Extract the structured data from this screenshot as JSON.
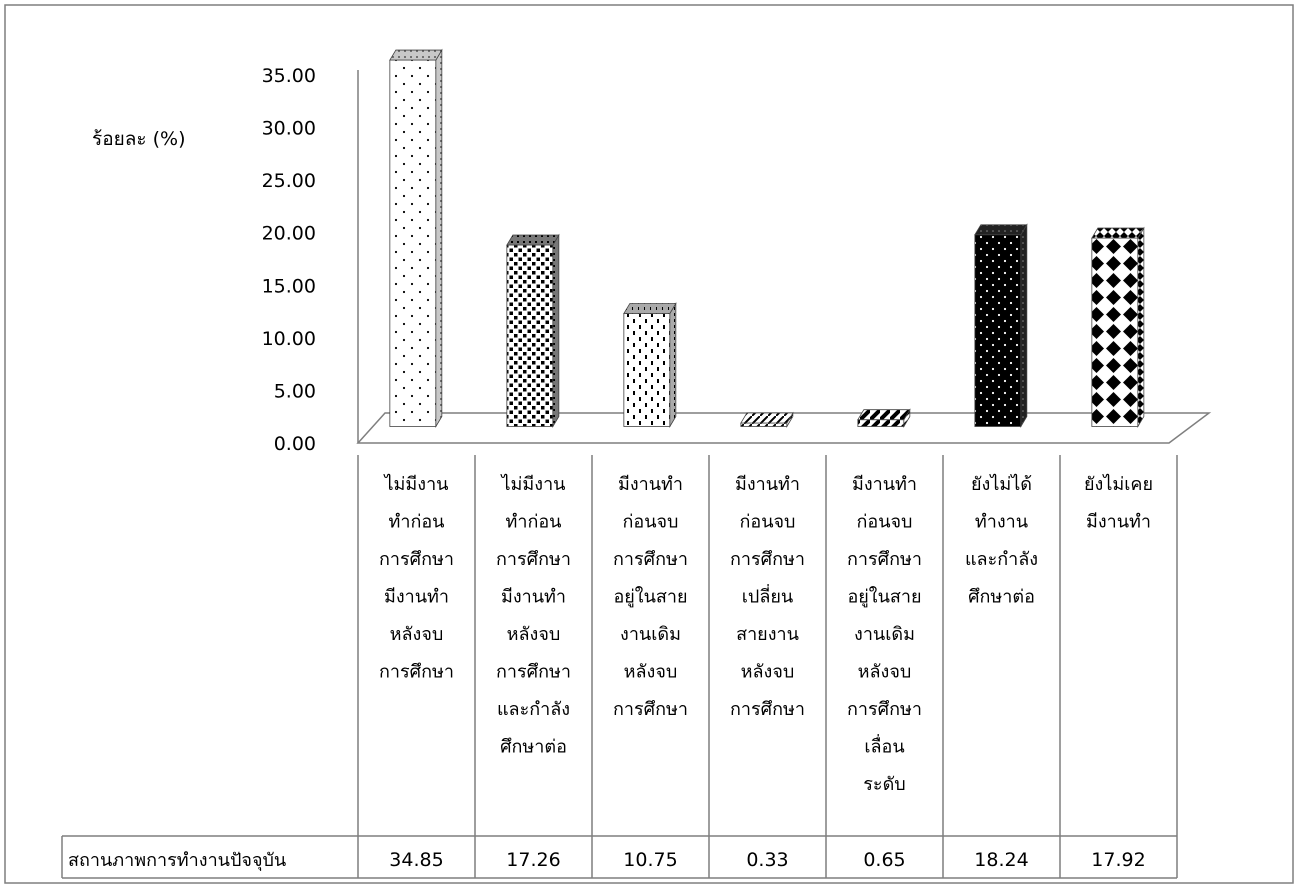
{
  "chart_data": {
    "type": "bar",
    "ylabel": "ร้อยละ (%)",
    "ylim": [
      0,
      35
    ],
    "yticks": [
      "0.00",
      "5.00",
      "10.00",
      "15.00",
      "20.00",
      "25.00",
      "30.00",
      "35.00"
    ],
    "categories": [
      [
        "ไม่มีงาน",
        "ทำก่อน",
        "การศึกษา",
        "มีงานทำ",
        "หลังจบ",
        "การศึกษา"
      ],
      [
        "ไม่มีงาน",
        "ทำก่อน",
        "การศึกษา",
        "มีงานทำ",
        "หลังจบ",
        "การศึกษา",
        "และกำลัง",
        "ศึกษาต่อ"
      ],
      [
        "มีงานทำ",
        "ก่อนจบ",
        "การศึกษา",
        "อยู่ในสาย",
        "งานเดิม",
        "หลังจบ",
        "การศึกษา"
      ],
      [
        "มีงานทำ",
        "ก่อนจบ",
        "การศึกษา",
        "เปลี่ยน",
        "สายงาน",
        "หลังจบ",
        "การศึกษา"
      ],
      [
        "มีงานทำ",
        "ก่อนจบ",
        "การศึกษา",
        "อยู่ในสาย",
        "งานเดิม",
        "หลังจบ",
        "การศึกษา",
        "เลื่อน",
        "ระดับ"
      ],
      [
        "ยังไม่ได้",
        "ทำงาน",
        "และกำลัง",
        "ศึกษาต่อ"
      ],
      [
        "ยังไม่เคย",
        "มีงานทำ"
      ]
    ],
    "series": [
      {
        "name": "สถานภาพการทำงานปัจจุบัน",
        "values": [
          34.85,
          17.26,
          10.75,
          0.33,
          0.65,
          18.24,
          17.92
        ],
        "value_labels": [
          "34.85",
          "17.26",
          "10.75",
          "0.33",
          "0.65",
          "18.24",
          "17.92"
        ]
      }
    ],
    "data_table": true,
    "grid": false,
    "legend": "data-table-row"
  }
}
